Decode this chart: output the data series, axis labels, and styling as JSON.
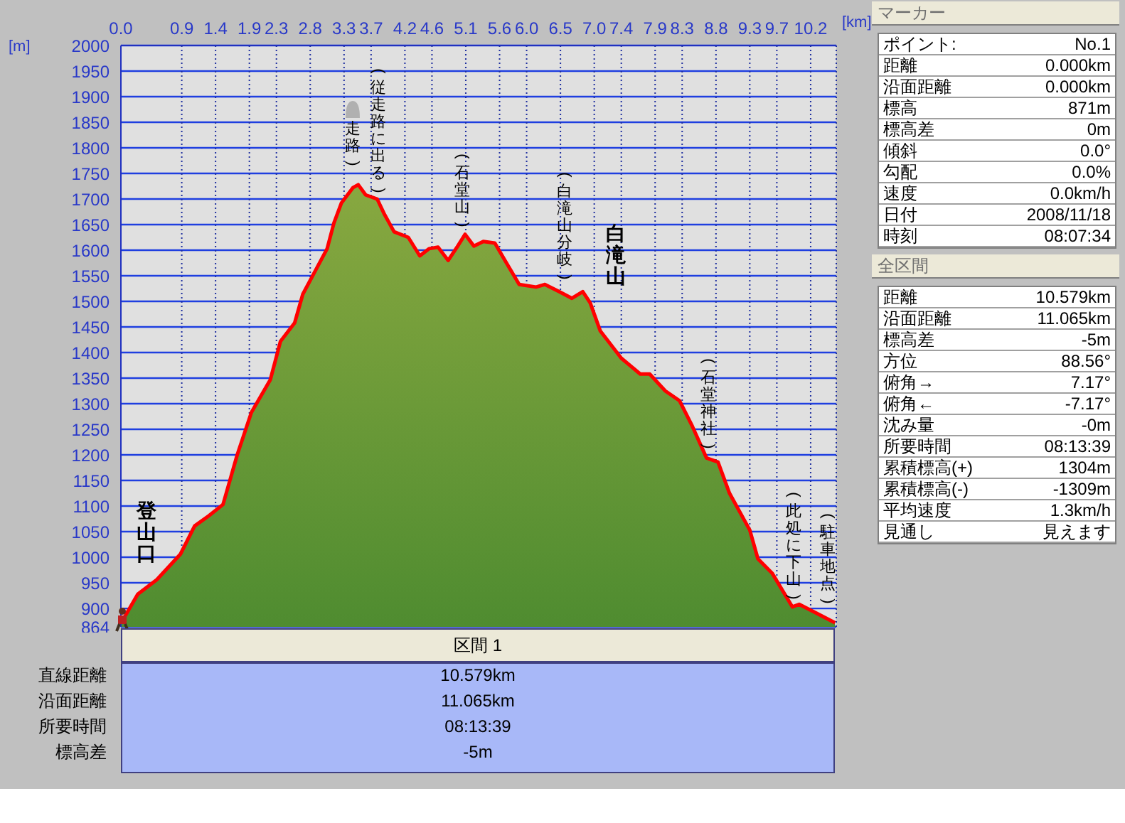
{
  "chart_data": [
    {
      "type": "area",
      "xlabel": "[km]",
      "ylabel": "[m]",
      "x": [
        0,
        0.25,
        0.53,
        0.88,
        1.09,
        1.3,
        1.51,
        1.72,
        1.93,
        2.21,
        2.36,
        2.57,
        2.69,
        2.88,
        3.05,
        3.15,
        3.26,
        3.43,
        3.51,
        3.62,
        3.79,
        3.89,
        4.04,
        4.25,
        4.42,
        4.56,
        4.69,
        4.84,
        4.98,
        5.09,
        5.22,
        5.36,
        5.53,
        5.68,
        5.89,
        6.14,
        6.27,
        6.48,
        6.67,
        6.83,
        6.94,
        7.09,
        7.4,
        7.68,
        7.82,
        8.05,
        8.26,
        8.45,
        8.66,
        8.83,
        9.0,
        9.3,
        9.42,
        9.63,
        9.93,
        10.03,
        10.24,
        10.56
      ],
      "series": [
        {
          "color": "#ff0000",
          "values": [
            871,
            928,
            956,
            1006,
            1061,
            1081,
            1103,
            1200,
            1283,
            1347,
            1422,
            1458,
            1514,
            1561,
            1603,
            1653,
            1692,
            1722,
            1728,
            1708,
            1700,
            1672,
            1636,
            1625,
            1589,
            1603,
            1606,
            1580,
            1608,
            1631,
            1608,
            1617,
            1614,
            1580,
            1533,
            1528,
            1533,
            1519,
            1506,
            1519,
            1497,
            1442,
            1389,
            1358,
            1358,
            1325,
            1306,
            1256,
            1194,
            1186,
            1125,
            1053,
            997,
            969,
            903,
            908,
            894,
            872
          ]
        }
      ],
      "xlim": [
        0,
        10.579
      ],
      "ylim": [
        864,
        2000
      ],
      "xticks": [
        {
          "value": 0,
          "label": "0.0"
        },
        0.9,
        1.4,
        1.9,
        2.3,
        2.8,
        3.3,
        3.7,
        4.2,
        4.6,
        5.1,
        5.6,
        {
          "value": 6,
          "label": "6.0"
        },
        6.5,
        {
          "value": 7,
          "label": "7.0"
        },
        7.4,
        7.9,
        8.3,
        8.8,
        9.3,
        9.7,
        10.2
      ],
      "yticks": [
        864,
        900,
        950,
        1000,
        1050,
        1100,
        1150,
        1200,
        1250,
        1300,
        1350,
        1400,
        1450,
        1500,
        1550,
        1600,
        1650,
        1700,
        1750,
        1800,
        1850,
        1900,
        1950,
        2000
      ],
      "grid": true,
      "annotations": [
        "登山口",
        "走路)",
        "(従走路に出る)",
        "(石堂山)",
        "(白滝山分岐)",
        "白滝山",
        "(石堂神社)",
        "(此処に下山)",
        "(駐車地点)"
      ]
    },
    {
      "type": "other",
      "title": "マーカー",
      "annotations": [
        "ポイント:",
        "No.1",
        "距離",
        "0.000km",
        "沿面距離",
        "0.000km",
        "標高",
        "871m",
        "標高差",
        "0m",
        "傾斜",
        "0.0°",
        "勾配",
        "0.0%",
        "速度",
        "0.0km/h",
        "日付",
        "2008/11/18",
        "時刻",
        "08:07:34"
      ]
    },
    {
      "type": "other",
      "title": "全区間",
      "annotations": [
        "距離",
        "10.579km",
        "沿面距離",
        "11.065km",
        "標高差",
        "-5m",
        "方位",
        "88.56°",
        "俯角→",
        "7.17°",
        "俯角←",
        "-7.17°",
        "沈み量",
        "-0m",
        "所要時間",
        "08:13:39",
        "累積標高(+)",
        "1304m",
        "累積標高(-)",
        "-1309m",
        "平均速度",
        "1.3km/h",
        "見通し",
        "見えます"
      ]
    },
    {
      "type": "other",
      "title": "区間 1",
      "annotations": [
        "直線距離",
        "10.579km",
        "沿面距離",
        "11.065km",
        "所要時間",
        "08:13:39",
        "標高差",
        "-5m"
      ]
    }
  ]
}
